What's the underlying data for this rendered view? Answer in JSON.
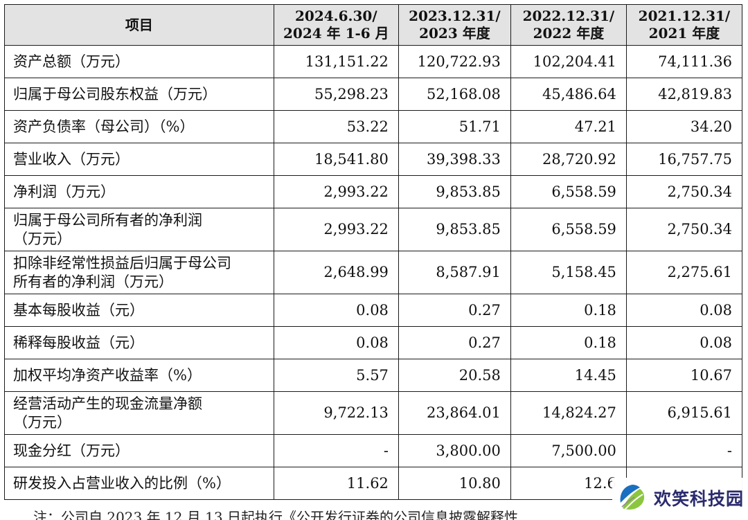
{
  "table": {
    "headers": [
      [
        "项目"
      ],
      [
        "2024.6.30/",
        "2024 年 1-6 月"
      ],
      [
        "2023.12.31/",
        "2023 年度"
      ],
      [
        "2022.12.31/",
        "2022 年度"
      ],
      [
        "2021.12.31/",
        "2021 年度"
      ]
    ],
    "rows": [
      {
        "label": [
          "资产总额（万元）"
        ],
        "values": [
          "131,151.22",
          "120,722.93",
          "102,204.41",
          "74,111.36"
        ]
      },
      {
        "label": [
          "归属于母公司股东权益（万元）"
        ],
        "values": [
          "55,298.23",
          "52,168.08",
          "45,486.64",
          "42,819.83"
        ]
      },
      {
        "label": [
          "资产负债率（母公司）（%）"
        ],
        "values": [
          "53.22",
          "51.71",
          "47.21",
          "34.20"
        ]
      },
      {
        "label": [
          "营业收入（万元）"
        ],
        "values": [
          "18,541.80",
          "39,398.33",
          "28,720.92",
          "16,757.75"
        ]
      },
      {
        "label": [
          "净利润（万元）"
        ],
        "values": [
          "2,993.22",
          "9,853.85",
          "6,558.59",
          "2,750.34"
        ]
      },
      {
        "label": [
          "归属于母公司所有者的净利润",
          "（万元）"
        ],
        "values": [
          "2,993.22",
          "9,853.85",
          "6,558.59",
          "2,750.34"
        ]
      },
      {
        "label": [
          "扣除非经常性损益后归属于母公司",
          "所有者的净利润（万元）"
        ],
        "values": [
          "2,648.99",
          "8,587.91",
          "5,158.45",
          "2,275.61"
        ]
      },
      {
        "label": [
          "基本每股收益（元）"
        ],
        "values": [
          "0.08",
          "0.27",
          "0.18",
          "0.08"
        ]
      },
      {
        "label": [
          "稀释每股收益（元）"
        ],
        "values": [
          "0.08",
          "0.27",
          "0.18",
          "0.08"
        ]
      },
      {
        "label": [
          "加权平均净资产收益率（%）"
        ],
        "values": [
          "5.57",
          "20.58",
          "14.45",
          "10.67"
        ]
      },
      {
        "label": [
          "经营活动产生的现金流量净额",
          "（万元）"
        ],
        "values": [
          "9,722.13",
          "23,864.01",
          "14,824.27",
          "6,915.61"
        ]
      },
      {
        "label": [
          "现金分红（万元）"
        ],
        "values": [
          "-",
          "3,800.00",
          "7,500.00",
          "-"
        ]
      },
      {
        "label": [
          "研发投入占营业收入的比例（%）"
        ],
        "values": [
          "11.62",
          "10.80",
          "12.6",
          ""
        ]
      }
    ]
  },
  "footnote": "注：公司自 2023 年 12 月 13 日起执行《公开发行证券的公司信息披露解释性",
  "watermark": {
    "text": "欢笑科技园",
    "colors": {
      "blue": "#1b6fc0",
      "green": "#8cc63f",
      "gray": "#8a8a8a"
    }
  }
}
